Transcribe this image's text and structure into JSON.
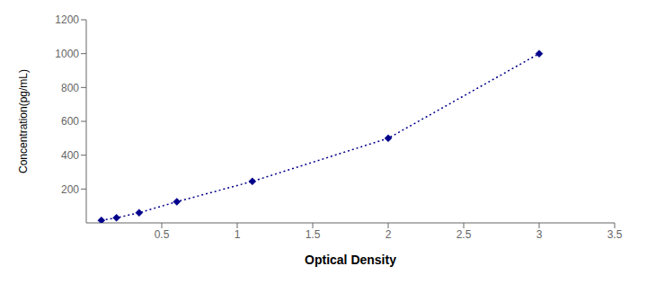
{
  "chart_data": {
    "type": "line",
    "x": [
      0.1,
      0.2,
      0.35,
      0.6,
      1.1,
      2.0,
      3.0
    ],
    "values": [
      15,
      30,
      60,
      125,
      245,
      500,
      1000
    ],
    "color": "#00008B",
    "marker": "diamond",
    "line_style": "dotted",
    "xlabel": "Optical Density",
    "ylabel": "Concentration(pg/mL)",
    "xlim": [
      0,
      3.5
    ],
    "ylim": [
      0,
      1200
    ],
    "xticks": [
      0.5,
      1,
      1.5,
      2,
      2.5,
      3,
      3.5
    ],
    "yticks": [
      200,
      400,
      600,
      800,
      1000,
      1200
    ],
    "grid": false
  }
}
